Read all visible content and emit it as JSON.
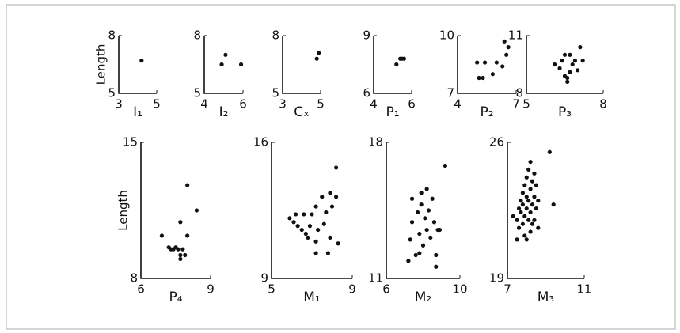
{
  "chart_data": [
    {
      "type": "scatter",
      "ylabel": "Length",
      "xlabel": "I₁",
      "x": [
        4.2
      ],
      "values": [
        6.7
      ],
      "xlim": [
        3,
        5
      ],
      "ylim": [
        5,
        8
      ],
      "xticks": [
        3,
        5
      ],
      "yticks": [
        5,
        8
      ],
      "color": "#111"
    },
    {
      "type": "scatter",
      "xlabel": "I₂",
      "x": [
        4.9,
        5.1,
        5.9
      ],
      "values": [
        6.5,
        7.0,
        6.5
      ],
      "xlim": [
        4,
        6
      ],
      "ylim": [
        5,
        8
      ],
      "xticks": [
        4,
        6
      ],
      "yticks": [
        5,
        8
      ],
      "color": "#111"
    },
    {
      "type": "scatter",
      "xlabel": "Cₓ",
      "x": [
        4.8,
        4.9
      ],
      "values": [
        6.8,
        7.1
      ],
      "xlim": [
        3,
        5
      ],
      "ylim": [
        5,
        8
      ],
      "xticks": [
        3,
        5
      ],
      "yticks": [
        5,
        8
      ],
      "color": "#111"
    },
    {
      "type": "scatter",
      "xlabel": "P₁",
      "x": [
        5.2,
        5.4,
        5.5,
        5.6
      ],
      "values": [
        7.5,
        7.8,
        7.8,
        7.8
      ],
      "xlim": [
        4,
        6
      ],
      "ylim": [
        6,
        9
      ],
      "xticks": [
        4,
        6
      ],
      "yticks": [
        6,
        9
      ],
      "color": "#111"
    },
    {
      "type": "scatter",
      "xlabel": "P₂",
      "x": [
        5.0,
        5.4,
        5.1,
        5.3,
        5.8,
        6.3,
        6.5,
        6.6,
        6.4,
        6.0
      ],
      "values": [
        8.6,
        8.6,
        7.8,
        7.8,
        8.0,
        8.4,
        9.0,
        9.4,
        9.7,
        8.6
      ],
      "xlim": [
        4,
        7
      ],
      "ylim": [
        7,
        10
      ],
      "xticks": [
        4,
        7
      ],
      "yticks": [
        7,
        10
      ],
      "color": "#111"
    },
    {
      "type": "scatter",
      "xlabel": "P₃",
      "x": [
        6.1,
        6.3,
        6.4,
        6.5,
        6.5,
        6.6,
        6.7,
        6.7,
        6.8,
        6.9,
        7.0,
        7.1,
        7.2,
        6.6
      ],
      "values": [
        9.5,
        9.3,
        9.7,
        8.9,
        10.0,
        8.6,
        9.1,
        10.0,
        9.5,
        9.7,
        9.2,
        10.4,
        9.7,
        8.8
      ],
      "xlim": [
        5,
        8
      ],
      "ylim": [
        8,
        11
      ],
      "xticks": [
        5,
        8
      ],
      "yticks": [
        8,
        11
      ],
      "color": "#111"
    },
    {
      "type": "scatter",
      "ylabel": "Length",
      "xlabel": "P₄",
      "x": [
        6.9,
        7.2,
        7.3,
        7.5,
        7.6,
        7.7,
        7.7,
        7.9,
        8.0,
        7.7,
        8.0,
        8.4,
        7.4,
        7.8
      ],
      "values": [
        10.2,
        9.6,
        9.5,
        9.6,
        9.5,
        9.2,
        9.0,
        9.2,
        10.2,
        10.9,
        12.8,
        11.5,
        9.5,
        9.5
      ],
      "xlim": [
        6,
        9
      ],
      "ylim": [
        8,
        15
      ],
      "xticks": [
        6,
        9
      ],
      "yticks": [
        8,
        15
      ],
      "color": "#111"
    },
    {
      "type": "scatter",
      "xlabel": "M₁",
      "x": [
        5.9,
        6.1,
        6.2,
        6.3,
        6.5,
        6.6,
        6.7,
        6.8,
        6.9,
        7.0,
        7.2,
        7.2,
        7.3,
        7.5,
        7.6,
        7.7,
        7.2,
        7.9,
        7.9,
        8.0,
        7.8,
        8.2,
        8.2,
        8.3
      ],
      "values": [
        12.1,
        11.9,
        12.3,
        11.7,
        11.5,
        12.3,
        11.3,
        11.1,
        11.7,
        12.3,
        10.9,
        12.7,
        11.5,
        13.2,
        11.8,
        12.4,
        10.3,
        13.4,
        11.1,
        12.7,
        10.3,
        13.2,
        14.7,
        10.8
      ],
      "xlim": [
        5,
        9
      ],
      "ylim": [
        9,
        16
      ],
      "xticks": [
        5,
        9
      ],
      "yticks": [
        9,
        16
      ],
      "color": "#111"
    },
    {
      "type": "scatter",
      "xlabel": "M₂",
      "x": [
        7.2,
        7.3,
        7.4,
        7.6,
        7.7,
        7.8,
        7.9,
        7.9,
        8.0,
        8.1,
        8.2,
        8.2,
        8.3,
        8.4,
        8.5,
        8.6,
        8.7,
        8.8,
        8.9,
        8.7,
        9.2,
        7.4,
        7.8
      ],
      "values": [
        11.9,
        13.0,
        13.9,
        12.2,
        14.4,
        13.3,
        14.8,
        15.4,
        12.7,
        14.1,
        15.6,
        13.5,
        14.5,
        13.1,
        15.1,
        13.9,
        12.2,
        13.5,
        13.5,
        11.6,
        16.8,
        15.1,
        12.3
      ],
      "xlim": [
        6,
        10
      ],
      "ylim": [
        11,
        18
      ],
      "xticks": [
        6,
        10
      ],
      "yticks": [
        11,
        18
      ],
      "color": "#111"
    },
    {
      "type": "scatter",
      "xlabel": "M₃",
      "x": [
        7.3,
        7.5,
        7.5,
        7.6,
        7.6,
        7.7,
        7.7,
        7.8,
        7.8,
        7.8,
        7.9,
        7.9,
        7.9,
        8.0,
        8.0,
        8.0,
        8.0,
        8.1,
        8.1,
        8.1,
        8.2,
        8.2,
        8.2,
        8.2,
        8.3,
        8.3,
        8.3,
        8.4,
        8.4,
        8.4,
        8.5,
        8.5,
        8.6,
        8.6,
        9.2,
        9.4
      ],
      "values": [
        22.2,
        21.0,
        22.0,
        22.6,
        21.6,
        23.0,
        22.4,
        21.8,
        22.8,
        23.4,
        21.2,
        22.2,
        23.8,
        22.6,
        23.2,
        24.2,
        21.0,
        22.0,
        23.0,
        24.6,
        21.4,
        22.4,
        23.6,
        25.0,
        22.8,
        24.0,
        21.8,
        23.2,
        22.0,
        24.4,
        22.6,
        23.8,
        23.0,
        21.6,
        25.5,
        22.8
      ],
      "xlim": [
        7,
        11
      ],
      "ylim": [
        19,
        26
      ],
      "xticks": [
        7,
        11
      ],
      "yticks": [
        19,
        26
      ],
      "color": "#111"
    }
  ]
}
